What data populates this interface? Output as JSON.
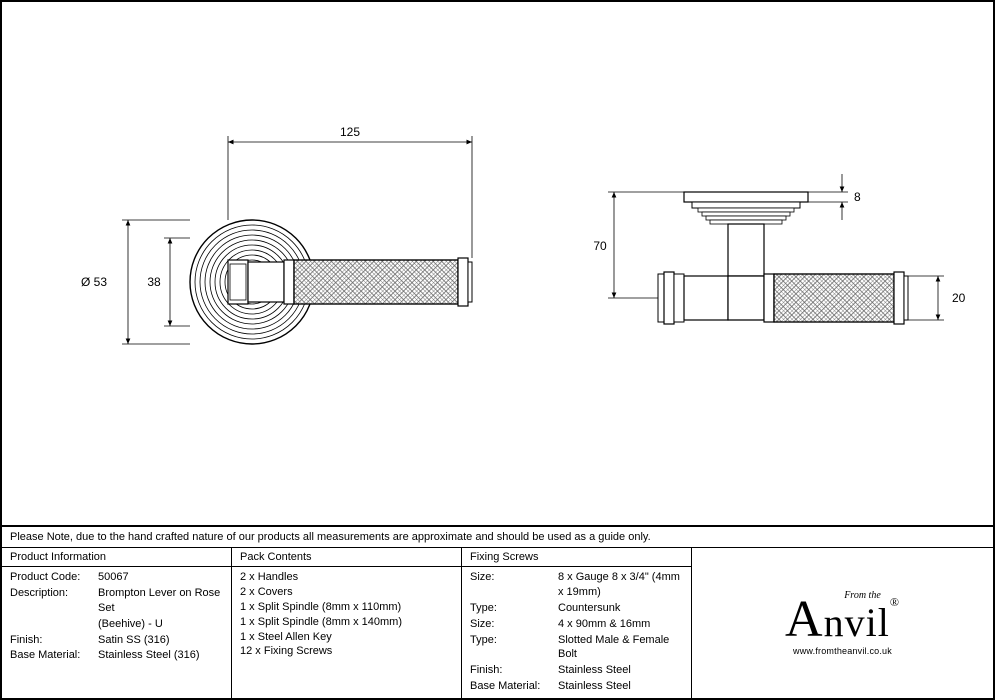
{
  "note": "Please Note, due to the hand crafted nature of our products all measurements are approximate and should be used as a guide only.",
  "columns": {
    "productInfo": {
      "header": "Product Information",
      "rows": [
        {
          "k": "Product Code:",
          "v": "50067"
        },
        {
          "k": "Description:",
          "v": "Brompton Lever on Rose Set"
        },
        {
          "k": "",
          "v": "(Beehive) - U"
        },
        {
          "k": "Finish:",
          "v": "Satin SS (316)"
        },
        {
          "k": "Base Material:",
          "v": "Stainless Steel (316)"
        }
      ]
    },
    "packContents": {
      "header": "Pack Contents",
      "items": [
        "2 x Handles",
        "2 x Covers",
        "1 x Split Spindle (8mm x 110mm)",
        "1 x Split Spindle (8mm x 140mm)",
        "1 x Steel Allen Key",
        "12 x Fixing Screws"
      ]
    },
    "fixingScrews": {
      "header": "Fixing Screws",
      "rows": [
        {
          "k": "Size:",
          "v": "8 x Gauge 8 x 3/4\" (4mm x 19mm)"
        },
        {
          "k": "Type:",
          "v": "Countersunk"
        },
        {
          "k": "Size:",
          "v": "4 x 90mm & 16mm"
        },
        {
          "k": "Type:",
          "v": "Slotted Male & Female Bolt"
        },
        {
          "k": "Finish:",
          "v": "Stainless Steel"
        },
        {
          "k": "Base Material:",
          "v": "Stainless Steel"
        }
      ]
    }
  },
  "logo": {
    "from": "From the",
    "main": "Anvil",
    "url": "www.fromtheanvil.co.uk"
  },
  "dimensions": {
    "front": {
      "width": "125",
      "diameter": "Ø 53",
      "inner": "38"
    },
    "side": {
      "height": "70",
      "topPlate": "8",
      "grip": "20"
    }
  },
  "drawing": {
    "colors": {
      "line": "#000000",
      "fill_light": "#ffffff",
      "hatch": "#888888"
    },
    "lineWidths": {
      "thin": 0.8,
      "normal": 1.2,
      "thick": 1.6
    },
    "arrowSize": 5
  }
}
